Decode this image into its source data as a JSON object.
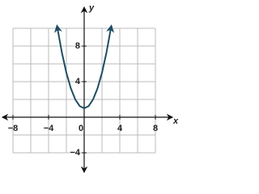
{
  "chart_data": {
    "type": "line",
    "x": [
      -3,
      -2.5,
      -2,
      -1.5,
      -1,
      -0.5,
      0,
      0.5,
      1,
      1.5,
      2,
      2.5,
      3
    ],
    "series": [
      {
        "color": "#1d4d63",
        "values": [
          10,
          7.25,
          5,
          3.25,
          2,
          1.25,
          1,
          1.25,
          2,
          3.25,
          5,
          7.25,
          10
        ]
      }
    ],
    "xlabel": "x",
    "ylabel": "y",
    "xlim": [
      -8,
      8
    ],
    "ylim": [
      -4,
      10
    ],
    "xticks": [
      {
        "value": -8,
        "label": "−8"
      },
      {
        "value": -4,
        "label": "−4"
      },
      0,
      4,
      8
    ],
    "yticks": [
      {
        "value": -4,
        "label": "−4"
      },
      4,
      8
    ],
    "xgrid": [
      -8,
      -6,
      -4,
      -2,
      0,
      2,
      4,
      6,
      8
    ],
    "ygrid": [
      -4,
      -2,
      0,
      2,
      4,
      6,
      8,
      10
    ],
    "grid": true
  }
}
